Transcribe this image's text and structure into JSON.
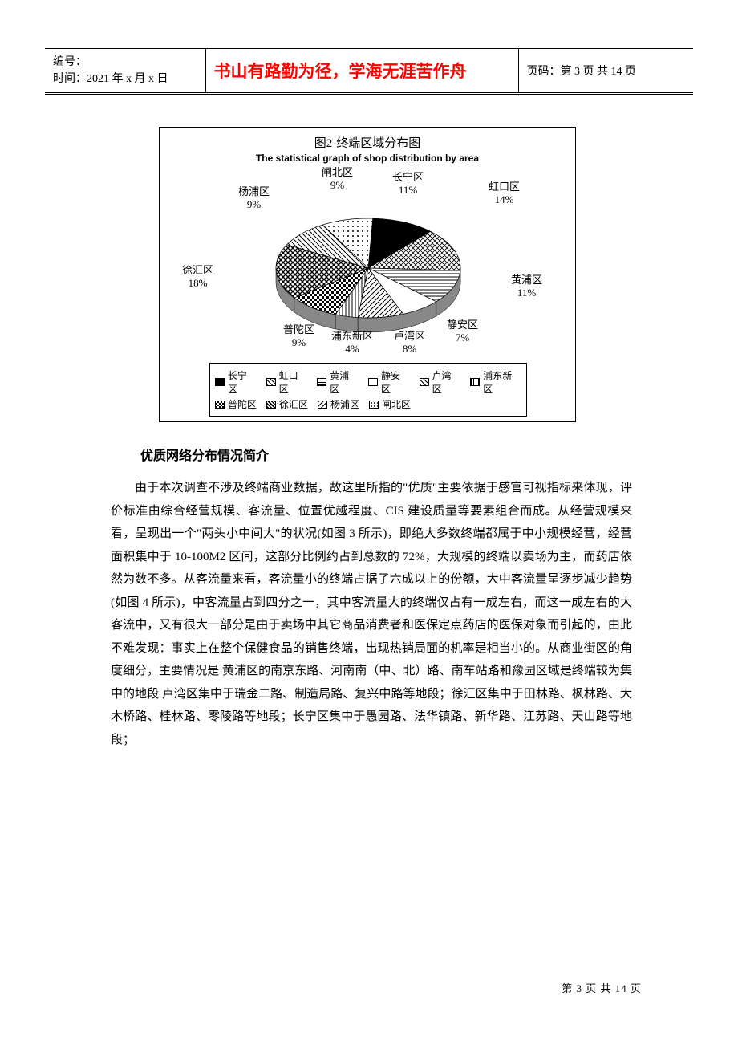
{
  "header": {
    "id_label": "编号：",
    "time_label": "时间：2021 年 x 月 x 日",
    "center": "书山有路勤为径，学海无涯苦作舟",
    "page_label": "页码：第 3 页 共 14 页"
  },
  "chart": {
    "type": "pie",
    "title_cn": "图2-终端区域分布图",
    "title_en": "The statistical graph of shop distribution by area",
    "background_color": "#ffffff",
    "border_color": "#000000",
    "slices": [
      {
        "label": "长宁区",
        "value": 11,
        "pattern": "solid-black"
      },
      {
        "label": "虹口区",
        "value": 14,
        "pattern": "diag-grid"
      },
      {
        "label": "黄浦区",
        "value": 11,
        "pattern": "horiz-lines"
      },
      {
        "label": "静安区",
        "value": 7,
        "pattern": "white"
      },
      {
        "label": "卢湾区",
        "value": 8,
        "pattern": "diag-right"
      },
      {
        "label": "浦东新区",
        "value": 4,
        "pattern": "vert-lines"
      },
      {
        "label": "普陀区",
        "value": 9,
        "pattern": "checker"
      },
      {
        "label": "徐汇区",
        "value": 18,
        "pattern": "cross-diag"
      },
      {
        "label": "杨浦区",
        "value": 9,
        "pattern": "diag-left"
      },
      {
        "label": "闸北区",
        "value": 9,
        "pattern": "dots"
      }
    ],
    "label_fontsize": 13,
    "legend_fontsize": 12,
    "legend_border_color": "#000000",
    "labels": {
      "changning": "长宁区\n11%",
      "hongkou": "虹口区\n14%",
      "huangpu": "黄浦区\n11%",
      "jingan": "静安区\n7%",
      "luwan": "卢湾区\n8%",
      "pudong": "浦东新区\n4%",
      "putuo": "普陀区\n9%",
      "xuhui": "徐汇区\n18%",
      "yangpu": "杨浦区\n9%",
      "zhabei": "闸北区\n9%"
    },
    "legend_items": [
      "长宁区",
      "虹口区",
      "黄浦区",
      "静安区",
      "卢湾区",
      "浦东新区",
      "普陀区",
      "徐汇区",
      "杨浦区",
      "闸北区"
    ]
  },
  "section": {
    "title": "优质网络分布情况简介",
    "body": "由于本次调查不涉及终端商业数据，故这里所指的\"优质\"主要依据于感官可视指标来体现，评价标准由综合经营规模、客流量、位置优越程度、CIS 建设质量等要素组合而成。从经营规模来看，呈现出一个\"两头小中间大\"的状况(如图 3 所示)，即绝大多数终端都属于中小规模经营，经营面积集中于 10-100M2 区间，这部分比例约占到总数的 72%，大规模的终端以卖场为主，而药店依然为数不多。从客流量来看，客流量小的终端占据了六成以上的份额，大中客流量呈逐步减少趋势(如图 4 所示)，中客流量占到四分之一，其中客流量大的终端仅占有一成左右，而这一成左右的大客流中，又有很大一部分是由于卖场中其它商品消费者和医保定点药店的医保对象而引起的，由此不难发现：事实上在整个保健食品的销售终端，出现热销局面的机率是相当小的。从商业街区的角度细分，主要情况是 黄浦区的南京东路、河南南（中、北）路、南车站路和豫园区域是终端较为集中的地段 卢湾区集中于瑞金二路、制造局路、复兴中路等地段；徐汇区集中于田林路、枫林路、大木桥路、桂林路、零陵路等地段；长宁区集中于愚园路、法华镇路、新华路、江苏路、天山路等地段；"
  },
  "footer": {
    "text": "第 3 页 共 14 页"
  }
}
